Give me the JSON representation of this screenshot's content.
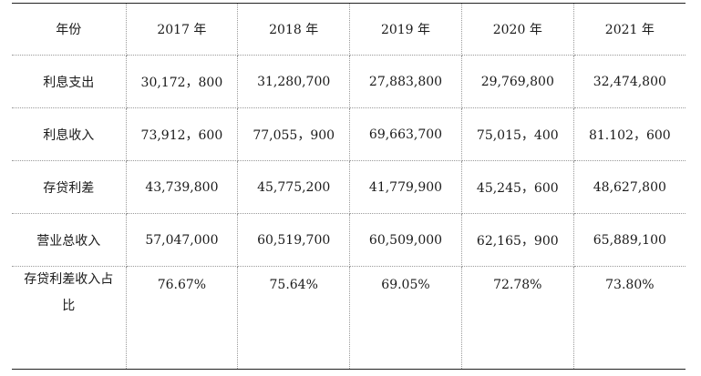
{
  "table": {
    "header": [
      "年份",
      "2017 年",
      "2018 年",
      "2019 年",
      "2020 年",
      "2021 年"
    ],
    "rows": [
      {
        "label": "利息支出",
        "values": [
          "30,172，800",
          "31,280,700",
          "27,883,800",
          "29,769,800",
          "32,474,800"
        ]
      },
      {
        "label": "利息收入",
        "values": [
          "73,912，600",
          "77,055，900",
          "69,663,700",
          "75,015，400",
          "81.102，600"
        ]
      },
      {
        "label": "存贷利差",
        "values": [
          "43,739,800",
          "45,775,200",
          "41,779,900",
          "45,245，600",
          "48,627,800"
        ]
      },
      {
        "label": "营业总收入",
        "values": [
          "57,047,000",
          "60,519,700",
          "60,509,000",
          "62,165，900",
          "65,889,100"
        ]
      },
      {
        "label": "存贷利差收入占比",
        "values": [
          "76.67%",
          "75.64%",
          "69.05%",
          "72.78%",
          "73.80%"
        ]
      }
    ]
  }
}
